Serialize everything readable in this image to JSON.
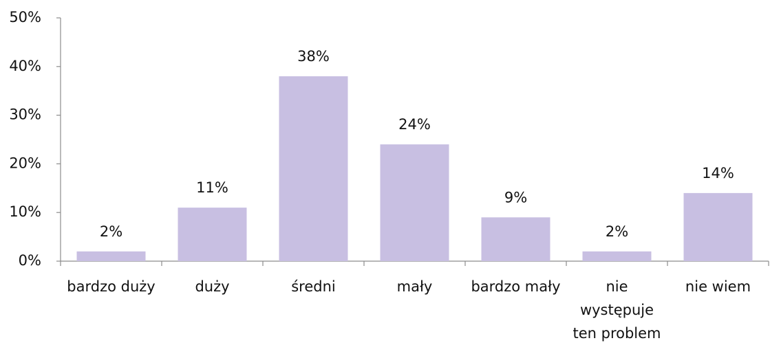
{
  "chart_data": {
    "type": "bar",
    "categories": [
      "bardzo duży",
      "duży",
      "średni",
      "mały",
      "bardzo mały",
      "nie występuje ten problem",
      "nie wiem"
    ],
    "values": [
      2,
      11,
      38,
      24,
      9,
      2,
      14
    ],
    "value_labels": [
      "2%",
      "11%",
      "38%",
      "24%",
      "9%",
      "2%",
      "14%"
    ],
    "color": "#c8bfe2",
    "ylim": [
      0,
      50
    ],
    "yticks": [
      {
        "value": 0,
        "label": "0%"
      },
      {
        "value": 10,
        "label": "10%"
      },
      {
        "value": 20,
        "label": "20%"
      },
      {
        "value": 30,
        "label": "30%"
      },
      {
        "value": 40,
        "label": "40%"
      },
      {
        "value": 50,
        "label": "50%"
      }
    ],
    "grid": false
  }
}
